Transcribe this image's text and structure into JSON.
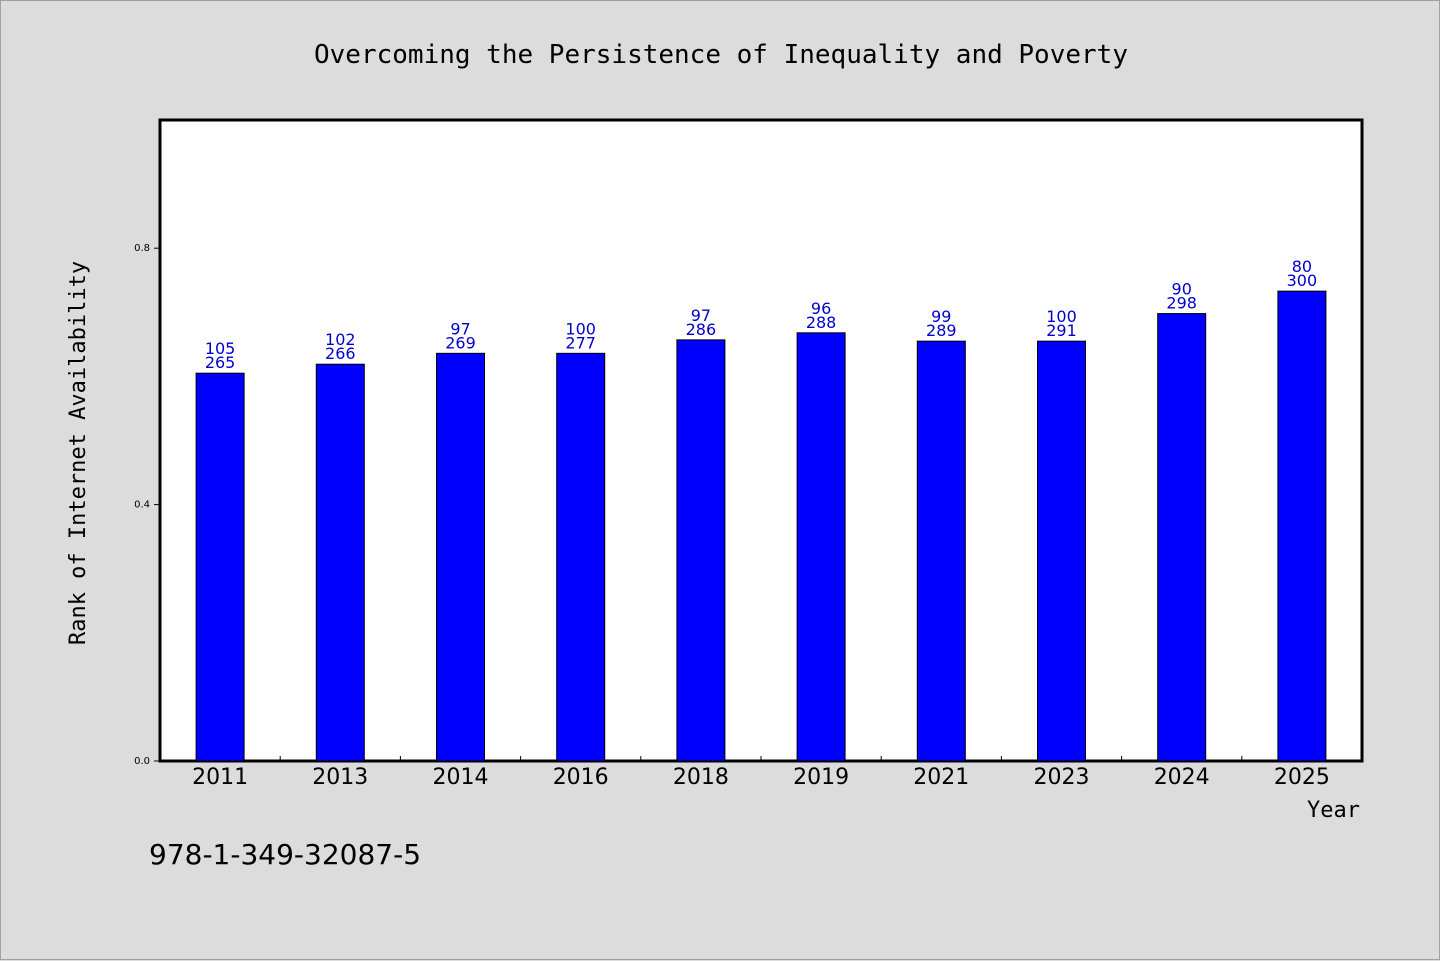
{
  "chart_data": {
    "type": "bar",
    "title": "Overcoming the Persistence of Inequality and Poverty",
    "xlabel": "Year",
    "ylabel": "Rank of Internet Availability",
    "ylim": [
      0,
      1.0
    ],
    "yticks": [
      "0.0",
      "0.4",
      "0.8"
    ],
    "grid": false,
    "categories": [
      "2011",
      "2013",
      "2014",
      "2016",
      "2018",
      "2019",
      "2021",
      "2023",
      "2024",
      "2025"
    ],
    "values": [
      0.605,
      0.619,
      0.636,
      0.636,
      0.657,
      0.668,
      0.655,
      0.655,
      0.698,
      0.733
    ],
    "bar_color": "#0000ff",
    "label_color": "#0000cc",
    "data_labels": [
      [
        "105",
        "265"
      ],
      [
        "102",
        "266"
      ],
      [
        "97",
        "269"
      ],
      [
        "100",
        "277"
      ],
      [
        "97",
        "286"
      ],
      [
        "96",
        "288"
      ],
      [
        "99",
        "289"
      ],
      [
        "100",
        "291"
      ],
      [
        "90",
        "298"
      ],
      [
        "80",
        "300"
      ]
    ]
  },
  "footnote": "978-1-349-32087-5"
}
